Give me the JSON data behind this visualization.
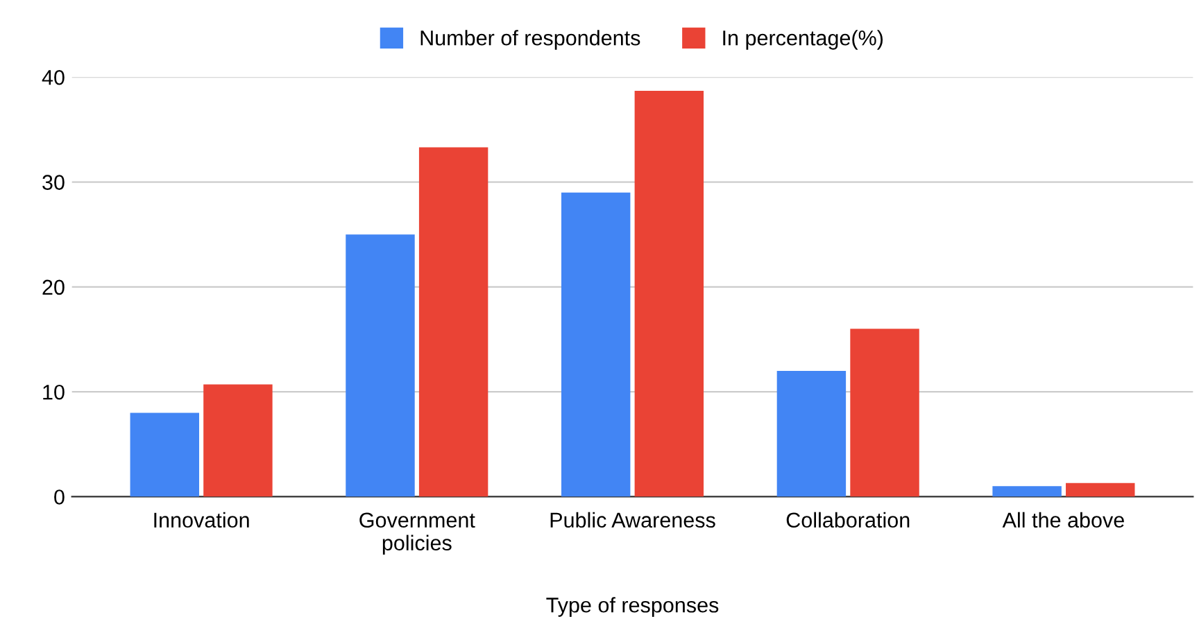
{
  "chart_data": {
    "type": "bar",
    "xlabel": "Type of responses",
    "categories": [
      "Innovation",
      "Government\npolicies",
      "Public Awareness",
      "Collaboration",
      "All the above"
    ],
    "series": [
      {
        "name": "Number of respondents",
        "color": "#4285f4",
        "values": [
          8,
          25,
          29,
          12,
          1
        ]
      },
      {
        "name": "In percentage(%)",
        "color": "#ea4335",
        "values": [
          10.7,
          33.3,
          38.7,
          16,
          1.3
        ]
      }
    ],
    "ylim": [
      0,
      40
    ],
    "yticks": [
      0,
      10,
      20,
      30,
      40
    ],
    "grid": "y",
    "legend": "top"
  }
}
